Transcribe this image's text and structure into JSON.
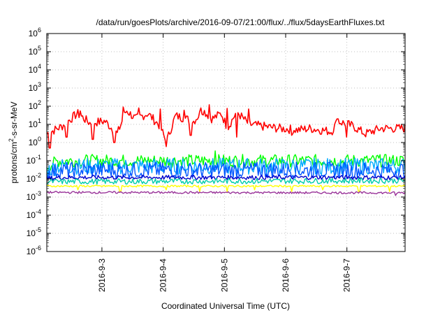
{
  "chart_data": {
    "type": "line",
    "title": "/data/run/goesPlots/archive/2016-09-07/21:00/flux/../flux/5daysEarthFluxes.txt",
    "xlabel": "Coordinated Universal Time (UTC)",
    "ylabel": "protons/cm²-s-sr-MeV",
    "ylabel_parts": {
      "base": "protons/cm",
      "sup": "2",
      "rest": "-s-sr-MeV"
    },
    "yscale": "log",
    "ylim_exp": [
      -6,
      6
    ],
    "y_ticks": [
      {
        "base": "10",
        "exp": "6"
      },
      {
        "base": "10",
        "exp": "5"
      },
      {
        "base": "10",
        "exp": "4"
      },
      {
        "base": "10",
        "exp": "3"
      },
      {
        "base": "10",
        "exp": "2"
      },
      {
        "base": "10",
        "exp": "1"
      },
      {
        "base": "10",
        "exp": "0"
      },
      {
        "base": "10",
        "exp": "-1"
      },
      {
        "base": "10",
        "exp": "-2"
      },
      {
        "base": "10",
        "exp": "-3"
      },
      {
        "base": "10",
        "exp": "-4"
      },
      {
        "base": "10",
        "exp": "-5"
      },
      {
        "base": "10",
        "exp": "-6"
      }
    ],
    "xlim_days": [
      2.1,
      7.95
    ],
    "x_ticks": [
      {
        "label": "2016-9-3",
        "day": 3
      },
      {
        "label": "2016-9-4",
        "day": 4
      },
      {
        "label": "2016-9-5",
        "day": 5
      },
      {
        "label": "2016-9-6",
        "day": 6
      },
      {
        "label": "2016-9-7",
        "day": 7
      }
    ],
    "grid": true,
    "series": [
      {
        "color": "#ff0000",
        "base": 12,
        "jitter": 0.25,
        "trend": [
          [
            2.1,
            3
          ],
          [
            2.35,
            8
          ],
          [
            2.6,
            40
          ],
          [
            2.8,
            12
          ],
          [
            3.05,
            15
          ],
          [
            3.25,
            3
          ],
          [
            3.4,
            60
          ],
          [
            3.55,
            20
          ],
          [
            3.75,
            40
          ],
          [
            3.95,
            8
          ],
          [
            4.05,
            1.0
          ],
          [
            4.2,
            30
          ],
          [
            4.5,
            15
          ],
          [
            4.65,
            60
          ],
          [
            4.8,
            20
          ],
          [
            4.95,
            40
          ],
          [
            5.05,
            6
          ],
          [
            5.2,
            50
          ],
          [
            5.4,
            10
          ],
          [
            5.6,
            8
          ],
          [
            5.9,
            6
          ],
          [
            6.2,
            5
          ],
          [
            6.4,
            6
          ],
          [
            6.75,
            4
          ],
          [
            6.85,
            15
          ],
          [
            7.1,
            8
          ],
          [
            7.3,
            3
          ],
          [
            7.55,
            6
          ],
          [
            7.95,
            6
          ]
        ],
        "spikes": [
          [
            2.65,
            55
          ],
          [
            3.35,
            90
          ],
          [
            3.6,
            80
          ],
          [
            3.95,
            70
          ],
          [
            4.35,
            60
          ],
          [
            4.62,
            80
          ],
          [
            4.75,
            120
          ],
          [
            5.05,
            75
          ],
          [
            5.2,
            100
          ],
          [
            5.4,
            70
          ],
          [
            6.85,
            20
          ]
        ],
        "dips": [
          [
            2.15,
            0.5
          ],
          [
            2.42,
            2
          ],
          [
            2.85,
            1.5
          ],
          [
            3.2,
            1
          ],
          [
            4.05,
            0.6
          ],
          [
            4.45,
            2.5
          ],
          [
            5.2,
            2
          ],
          [
            6.1,
            2.5
          ],
          [
            7.0,
            2
          ]
        ]
      },
      {
        "color": "#00ff00",
        "base": 0.1,
        "jitter": 0.35,
        "trend": [
          [
            2.1,
            0.05
          ],
          [
            2.3,
            0.1
          ],
          [
            7.95,
            0.1
          ]
        ],
        "spikes": [
          [
            4.85,
            0.35
          ],
          [
            7.5,
            0.2
          ]
        ],
        "dips": []
      },
      {
        "color": "#00aaff",
        "base": 0.05,
        "jitter": 0.45,
        "trend": [
          [
            2.1,
            0.03
          ],
          [
            2.3,
            0.05
          ],
          [
            7.95,
            0.05
          ]
        ],
        "spikes": [],
        "dips": []
      },
      {
        "color": "#0055ff",
        "base": 0.03,
        "jitter": 0.45,
        "trend": [
          [
            2.1,
            0.02
          ],
          [
            2.3,
            0.03
          ],
          [
            7.95,
            0.03
          ]
        ],
        "spikes": [],
        "dips": []
      },
      {
        "color": "#0000cc",
        "base": 0.012,
        "jitter": 0.12,
        "trend": [
          [
            2.1,
            0.01
          ],
          [
            2.3,
            0.012
          ],
          [
            7.95,
            0.012
          ]
        ],
        "spikes": [],
        "dips": []
      },
      {
        "color": "#00ccaa",
        "base": 0.008,
        "jitter": 0.15,
        "trend": [
          [
            2.1,
            0.007
          ],
          [
            7.95,
            0.008
          ]
        ],
        "spikes": [],
        "dips": []
      },
      {
        "color": "#ffff00",
        "base": 0.004,
        "jitter": 0.05,
        "trend": [
          [
            2.1,
            0.004
          ],
          [
            7.95,
            0.004
          ]
        ],
        "spikes": [],
        "dips": [
          [
            2.6,
            0.0025
          ],
          [
            3.3,
            0.002
          ],
          [
            4.05,
            0.0025
          ],
          [
            4.6,
            0.002
          ],
          [
            5.05,
            0.002
          ],
          [
            5.5,
            0.0025
          ],
          [
            6.1,
            0.002
          ],
          [
            6.6,
            0.0025
          ],
          [
            7.2,
            0.002
          ],
          [
            7.7,
            0.002
          ]
        ]
      },
      {
        "color": "#993399",
        "base": 0.0018,
        "jitter": 0.06,
        "trend": [
          [
            2.1,
            0.0018
          ],
          [
            7.95,
            0.0017
          ]
        ],
        "spikes": [],
        "dips": [
          [
            7.8,
            0.0012
          ]
        ]
      }
    ]
  }
}
